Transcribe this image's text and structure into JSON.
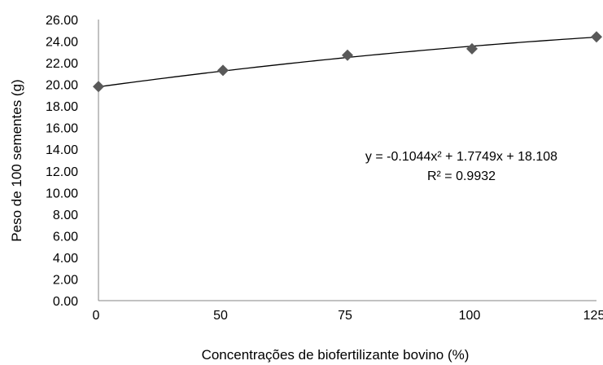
{
  "chart_data": {
    "type": "scatter",
    "title": "",
    "xlabel": "Concentrações de biofertilizante bovino (%)",
    "ylabel": "Peso de 100 sementes (g)",
    "x_tick_labels": [
      "0",
      "50",
      "75",
      "100",
      "125"
    ],
    "y_tick_labels": [
      "0.00",
      "2.00",
      "4.00",
      "6.00",
      "8.00",
      "10.00",
      "12.00",
      "14.00",
      "16.00",
      "18.00",
      "20.00",
      "22.00",
      "24.00",
      "26.00"
    ],
    "ylim": [
      0,
      26
    ],
    "grid": false,
    "marker": "diamond",
    "marker_color": "#595959",
    "series": [
      {
        "categories": [
          "0",
          "50",
          "75",
          "100",
          "125"
        ],
        "values": [
          19.8,
          21.3,
          22.7,
          23.3,
          24.4
        ]
      }
    ],
    "trendline": {
      "type": "polynomial",
      "coefficients": [
        -0.1044,
        1.7749,
        18.108
      ],
      "equation_text": "y = -0.1044x² + 1.7749x + 18.108",
      "r2_text": "R² = 0.9932"
    }
  }
}
